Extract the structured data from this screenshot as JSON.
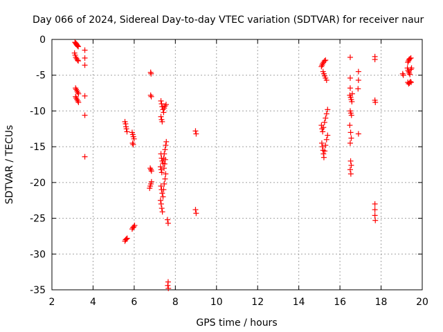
{
  "chart_data": {
    "type": "scatter",
    "title": "Day 066 of 2024, Sidereal Day-to-day VTEC variation (SDTVAR) for receiver naur",
    "xlabel": "GPS time / hours",
    "ylabel": "SDTVAR / TECUs",
    "xlim": [
      2,
      20
    ],
    "ylim": [
      -35,
      0
    ],
    "xticks": [
      2,
      4,
      6,
      8,
      10,
      12,
      14,
      16,
      18,
      20
    ],
    "yticks": [
      0,
      -5,
      -10,
      -15,
      -20,
      -25,
      -30,
      -35
    ],
    "grid": true,
    "marker": "+",
    "series": [
      {
        "name": "SDTVAR",
        "color": "#ff0000",
        "points": [
          [
            3.12,
            -0.4
          ],
          [
            3.15,
            -0.5
          ],
          [
            3.18,
            -0.6
          ],
          [
            3.2,
            -0.7
          ],
          [
            3.22,
            -0.8
          ],
          [
            3.25,
            -0.9
          ],
          [
            3.28,
            -1.0
          ],
          [
            3.1,
            -1.9
          ],
          [
            3.13,
            -2.2
          ],
          [
            3.16,
            -2.5
          ],
          [
            3.2,
            -2.7
          ],
          [
            3.25,
            -2.9
          ],
          [
            3.28,
            -3.0
          ],
          [
            3.15,
            -6.8
          ],
          [
            3.18,
            -7.0
          ],
          [
            3.22,
            -7.2
          ],
          [
            3.26,
            -7.4
          ],
          [
            3.29,
            -7.6
          ],
          [
            3.15,
            -8.0
          ],
          [
            3.18,
            -8.2
          ],
          [
            3.22,
            -8.4
          ],
          [
            3.26,
            -8.6
          ],
          [
            3.29,
            -8.8
          ],
          [
            3.6,
            -1.5
          ],
          [
            3.6,
            -2.6
          ],
          [
            3.6,
            -3.6
          ],
          [
            3.6,
            -7.9
          ],
          [
            3.6,
            -10.6
          ],
          [
            3.6,
            -16.4
          ],
          [
            5.55,
            -11.5
          ],
          [
            5.58,
            -11.8
          ],
          [
            5.6,
            -12.2
          ],
          [
            5.62,
            -12.5
          ],
          [
            5.65,
            -12.9
          ],
          [
            5.55,
            -28.2
          ],
          [
            5.58,
            -28.0
          ],
          [
            5.62,
            -27.9
          ],
          [
            5.66,
            -27.8
          ],
          [
            5.9,
            -13.0
          ],
          [
            5.93,
            -13.3
          ],
          [
            5.96,
            -13.6
          ],
          [
            5.99,
            -13.9
          ],
          [
            5.92,
            -14.5
          ],
          [
            5.95,
            -14.7
          ],
          [
            5.9,
            -26.5
          ],
          [
            5.94,
            -26.3
          ],
          [
            5.98,
            -26.2
          ],
          [
            6.02,
            -26.0
          ],
          [
            6.8,
            -4.6
          ],
          [
            6.82,
            -4.8
          ],
          [
            6.8,
            -7.8
          ],
          [
            6.83,
            -8.0
          ],
          [
            6.78,
            -18.0
          ],
          [
            6.81,
            -18.2
          ],
          [
            6.84,
            -18.4
          ],
          [
            6.75,
            -20.8
          ],
          [
            6.78,
            -20.5
          ],
          [
            6.81,
            -20.2
          ],
          [
            6.84,
            -19.9
          ],
          [
            7.3,
            -8.6
          ],
          [
            7.33,
            -9.0
          ],
          [
            7.36,
            -9.4
          ],
          [
            7.4,
            -9.8
          ],
          [
            7.43,
            -10.2
          ],
          [
            7.46,
            -9.6
          ],
          [
            7.5,
            -9.3
          ],
          [
            7.55,
            -9.1
          ],
          [
            7.3,
            -10.8
          ],
          [
            7.33,
            -11.2
          ],
          [
            7.36,
            -11.5
          ],
          [
            7.3,
            -16.0
          ],
          [
            7.33,
            -16.6
          ],
          [
            7.36,
            -17.0
          ],
          [
            7.4,
            -17.3
          ],
          [
            7.43,
            -16.6
          ],
          [
            7.46,
            -16.0
          ],
          [
            7.5,
            -15.4
          ],
          [
            7.53,
            -14.8
          ],
          [
            7.56,
            -14.3
          ],
          [
            7.28,
            -17.8
          ],
          [
            7.31,
            -18.2
          ],
          [
            7.34,
            -18.6
          ],
          [
            7.45,
            -18.0
          ],
          [
            7.48,
            -17.4
          ],
          [
            7.51,
            -16.8
          ],
          [
            7.3,
            -20.5
          ],
          [
            7.33,
            -21.0
          ],
          [
            7.36,
            -21.5
          ],
          [
            7.4,
            -22.0
          ],
          [
            7.43,
            -21.0
          ],
          [
            7.46,
            -20.2
          ],
          [
            7.5,
            -19.5
          ],
          [
            7.53,
            -18.8
          ],
          [
            7.28,
            -22.5
          ],
          [
            7.31,
            -23.0
          ],
          [
            7.34,
            -23.6
          ],
          [
            7.37,
            -24.1
          ],
          [
            7.62,
            -25.2
          ],
          [
            7.65,
            -25.7
          ],
          [
            7.65,
            -33.9
          ],
          [
            7.63,
            -34.4
          ],
          [
            7.66,
            -34.8
          ],
          [
            8.98,
            -12.8
          ],
          [
            9.01,
            -13.2
          ],
          [
            8.98,
            -23.8
          ],
          [
            9.01,
            -24.3
          ],
          [
            15.1,
            -3.8
          ],
          [
            15.13,
            -3.6
          ],
          [
            15.16,
            -3.4
          ],
          [
            15.2,
            -3.2
          ],
          [
            15.25,
            -3.0
          ],
          [
            15.3,
            -2.9
          ],
          [
            15.18,
            -4.5
          ],
          [
            15.22,
            -4.8
          ],
          [
            15.26,
            -5.1
          ],
          [
            15.3,
            -5.4
          ],
          [
            15.35,
            -5.7
          ],
          [
            15.1,
            -12.0
          ],
          [
            15.13,
            -12.5
          ],
          [
            15.16,
            -12.9
          ],
          [
            15.2,
            -12.3
          ],
          [
            15.25,
            -11.6
          ],
          [
            15.3,
            -11.0
          ],
          [
            15.35,
            -10.4
          ],
          [
            15.4,
            -9.8
          ],
          [
            15.12,
            -14.5
          ],
          [
            15.15,
            -15.0
          ],
          [
            15.18,
            -15.5
          ],
          [
            15.2,
            -16.0
          ],
          [
            15.22,
            -16.5
          ],
          [
            15.26,
            -15.6
          ],
          [
            15.3,
            -14.8
          ],
          [
            15.35,
            -14.0
          ],
          [
            15.4,
            -13.4
          ],
          [
            16.5,
            -2.5
          ],
          [
            16.5,
            -5.4
          ],
          [
            16.5,
            -6.8
          ],
          [
            16.48,
            -7.8
          ],
          [
            16.52,
            -8.1
          ],
          [
            16.55,
            -8.4
          ],
          [
            16.58,
            -8.7
          ],
          [
            16.6,
            -7.6
          ],
          [
            16.5,
            -10.0
          ],
          [
            16.53,
            -10.3
          ],
          [
            16.56,
            -10.6
          ],
          [
            16.48,
            -12.0
          ],
          [
            16.52,
            -13.0
          ],
          [
            16.55,
            -13.8
          ],
          [
            16.5,
            -14.5
          ],
          [
            16.52,
            -17.0
          ],
          [
            16.55,
            -17.6
          ],
          [
            16.5,
            -18.2
          ],
          [
            16.53,
            -18.8
          ],
          [
            16.9,
            -4.5
          ],
          [
            16.9,
            -5.7
          ],
          [
            16.88,
            -6.9
          ],
          [
            16.9,
            -13.2
          ],
          [
            17.7,
            -2.4
          ],
          [
            17.7,
            -2.8
          ],
          [
            17.7,
            -8.5
          ],
          [
            17.72,
            -8.8
          ],
          [
            17.7,
            -23.0
          ],
          [
            17.7,
            -23.8
          ],
          [
            17.7,
            -24.6
          ],
          [
            17.72,
            -25.3
          ],
          [
            19.05,
            -4.8
          ],
          [
            19.08,
            -5.0
          ],
          [
            19.3,
            -3.2
          ],
          [
            19.33,
            -3.0
          ],
          [
            19.36,
            -2.8
          ],
          [
            19.4,
            -2.7
          ],
          [
            19.45,
            -2.6
          ],
          [
            19.28,
            -4.0
          ],
          [
            19.31,
            -4.3
          ],
          [
            19.34,
            -4.5
          ],
          [
            19.37,
            -4.7
          ],
          [
            19.4,
            -4.9
          ],
          [
            19.45,
            -4.2
          ],
          [
            19.48,
            -4.0
          ],
          [
            19.3,
            -6.0
          ],
          [
            19.34,
            -6.2
          ],
          [
            19.38,
            -6.1
          ],
          [
            19.42,
            -5.9
          ],
          [
            19.46,
            -6.0
          ]
        ]
      }
    ]
  }
}
